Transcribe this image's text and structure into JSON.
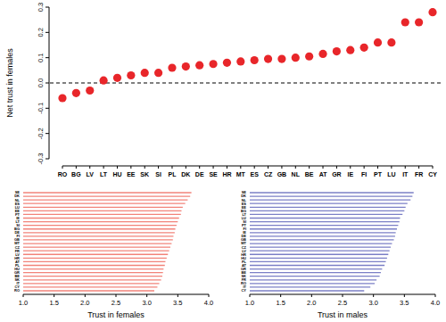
{
  "chart_data": [
    {
      "type": "scatter",
      "y_label": "Net trust in females",
      "categories": [
        "RO",
        "BG",
        "LV",
        "LT",
        "HU",
        "EE",
        "SK",
        "SI",
        "PL",
        "DK",
        "DE",
        "SE",
        "HR",
        "MT",
        "ES",
        "CZ",
        "GB",
        "NL",
        "BE",
        "AT",
        "GR",
        "IE",
        "FI",
        "PT",
        "LU",
        "IT",
        "FR",
        "CY"
      ],
      "values": [
        -0.06,
        -0.04,
        -0.03,
        0.01,
        0.02,
        0.03,
        0.04,
        0.04,
        0.06,
        0.065,
        0.07,
        0.075,
        0.08,
        0.085,
        0.09,
        0.095,
        0.095,
        0.1,
        0.105,
        0.115,
        0.125,
        0.13,
        0.14,
        0.16,
        0.16,
        0.24,
        0.24,
        0.28
      ],
      "color": "#e8262a",
      "marker": "circle",
      "ylim": [
        -0.3,
        0.3
      ],
      "yticks": [
        -0.3,
        -0.2,
        -0.1,
        {
          "value": 0,
          "label": "0.0"
        },
        0.1,
        0.2,
        0.3
      ],
      "reference_line": 0
    },
    {
      "type": "bar",
      "orientation": "horizontal",
      "x_label": "Trust in females",
      "categories": [
        "SE",
        "DK",
        "NL",
        "ES",
        "LU",
        "EE",
        "PT",
        "IE",
        "LT",
        "SI",
        "BG",
        "DE",
        "FI",
        "GB",
        "MT",
        "CZ",
        "FR",
        "LV",
        "HR",
        "AT",
        "PL",
        "HU",
        "GR",
        "BE",
        "SK",
        "IT",
        "CY",
        "RO"
      ],
      "values": [
        3.72,
        3.7,
        3.66,
        3.62,
        3.58,
        3.56,
        3.55,
        3.52,
        3.5,
        3.48,
        3.46,
        3.45,
        3.43,
        3.42,
        3.4,
        3.38,
        3.36,
        3.34,
        3.32,
        3.3,
        3.29,
        3.27,
        3.26,
        3.25,
        3.23,
        3.2,
        3.17,
        3.12
      ],
      "color": "#f2837a",
      "xlim": [
        1.0,
        4.0
      ],
      "xticks": [
        {
          "value": 1,
          "label": "1.0"
        },
        1.5,
        {
          "value": 2,
          "label": "2.0"
        },
        2.5,
        {
          "value": 3,
          "label": "3.0"
        },
        3.5,
        {
          "value": 4,
          "label": "4.0"
        }
      ]
    },
    {
      "type": "bar",
      "orientation": "horizontal",
      "x_label": "Trust in males",
      "categories": [
        "SE",
        "DK",
        "NL",
        "ES",
        "EE",
        "BG",
        "LT",
        "LU",
        "SI",
        "PT",
        "FI",
        "IE",
        "DE",
        "GB",
        "MT",
        "CZ",
        "LV",
        "HR",
        "HU",
        "PL",
        "AT",
        "GR",
        "BE",
        "SK",
        "FR",
        "RO",
        "IT",
        "CY"
      ],
      "values": [
        3.65,
        3.63,
        3.6,
        3.55,
        3.52,
        3.5,
        3.47,
        3.43,
        3.42,
        3.4,
        3.38,
        3.36,
        3.35,
        3.33,
        3.3,
        3.28,
        3.26,
        3.24,
        3.22,
        3.2,
        3.18,
        3.14,
        3.12,
        3.1,
        3.05,
        3.02,
        2.95,
        2.85
      ],
      "color": "#7b7fc6",
      "xlim": [
        1.0,
        4.0
      ],
      "xticks": [
        {
          "value": 1,
          "label": "1.0"
        },
        1.5,
        {
          "value": 2,
          "label": "2.0"
        },
        2.5,
        {
          "value": 3,
          "label": "3.0"
        },
        3.5,
        {
          "value": 4,
          "label": "4.0"
        }
      ]
    }
  ]
}
